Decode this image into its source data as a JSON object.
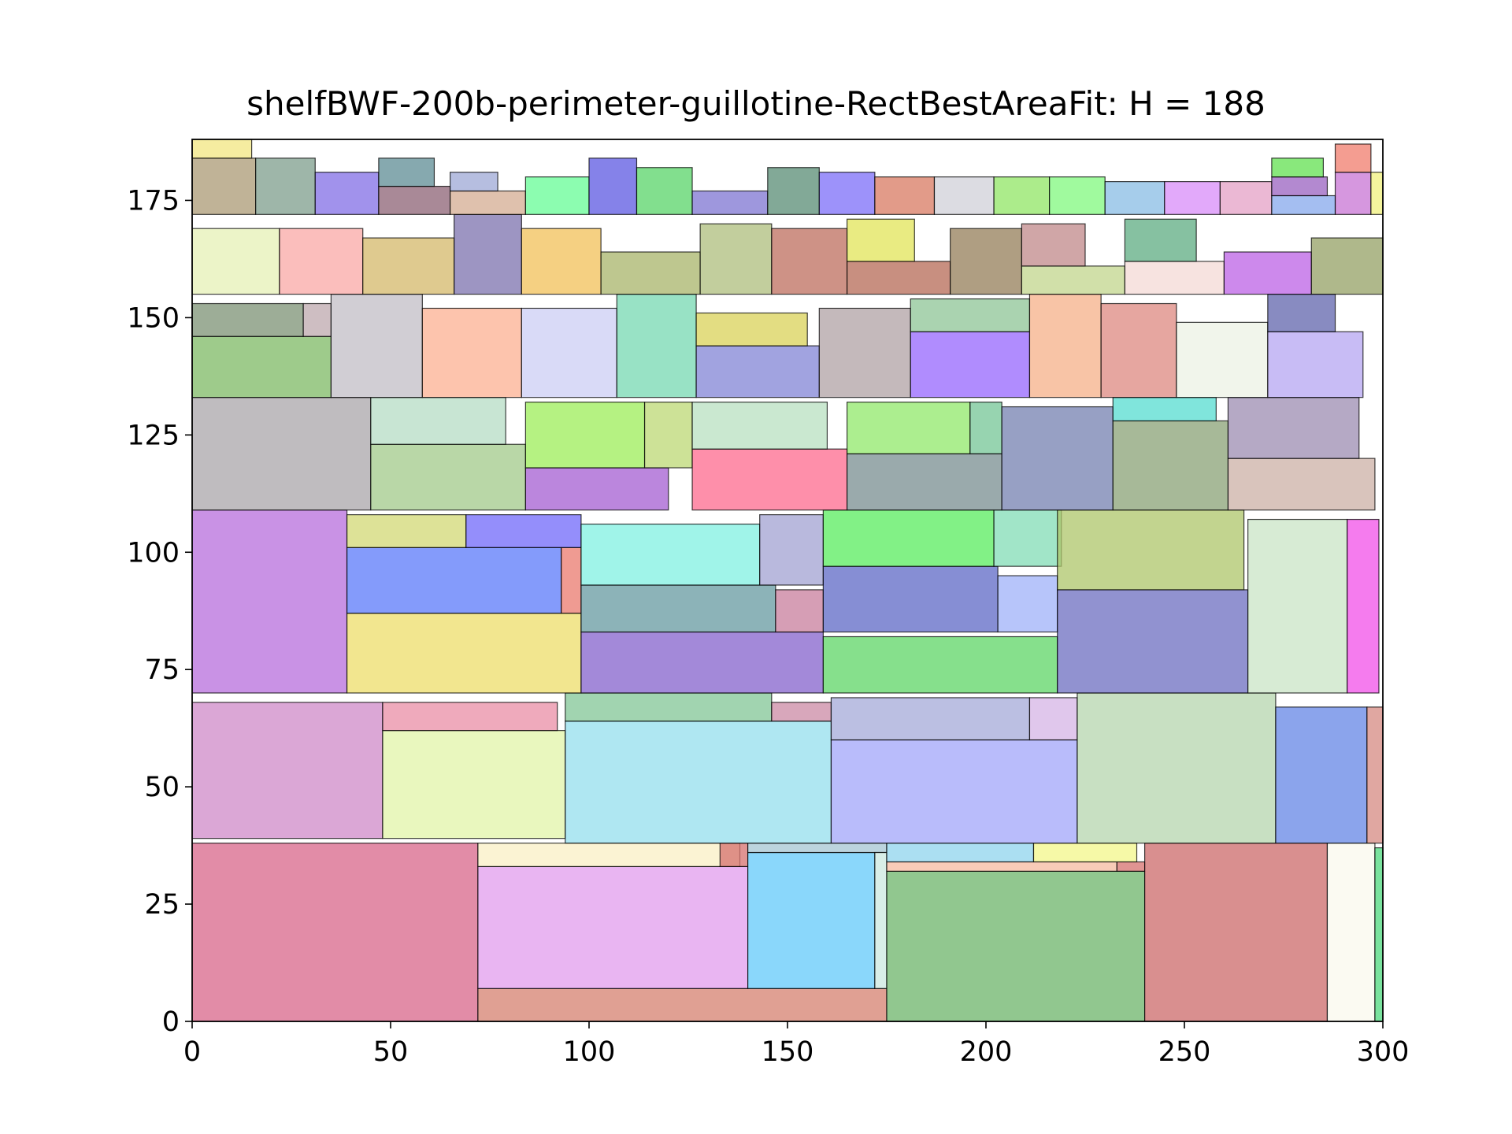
{
  "chart_data": {
    "type": "rectangle-packing",
    "title": "shelfBWF-200b-perimeter-guillotine-RectBestAreaFit: H = 188",
    "xlim": [
      0,
      300
    ],
    "ylim": [
      0,
      188
    ],
    "xticks": [
      0,
      50,
      100,
      150,
      200,
      250,
      300
    ],
    "yticks": [
      0,
      25,
      50,
      75,
      100,
      125,
      150,
      175
    ],
    "grid": false,
    "legend": "none",
    "rects": [
      {
        "x": 0,
        "y": 0,
        "w": 72,
        "h": 38,
        "color": "#d8658a"
      },
      {
        "x": 72,
        "y": 0,
        "w": 103,
        "h": 7,
        "color": "#d6806f"
      },
      {
        "x": 72,
        "y": 7,
        "w": 68,
        "h": 26,
        "color": "#e19cee"
      },
      {
        "x": 72,
        "y": 33,
        "w": 66,
        "h": 5,
        "color": "#faefc4"
      },
      {
        "x": 133,
        "y": 33,
        "w": 7,
        "h": 5,
        "color": "#d6706e"
      },
      {
        "x": 140,
        "y": 7,
        "w": 32,
        "h": 29,
        "color": "#63cafa"
      },
      {
        "x": 140,
        "y": 36,
        "w": 35,
        "h": 2,
        "color": "#a6c6d3"
      },
      {
        "x": 172,
        "y": 7,
        "w": 3,
        "h": 29,
        "color": "#cce8e0"
      },
      {
        "x": 175,
        "y": 0,
        "w": 65,
        "h": 32,
        "color": "#6cb46a"
      },
      {
        "x": 175,
        "y": 32,
        "w": 58,
        "h": 2,
        "color": "#f6b9a0"
      },
      {
        "x": 233,
        "y": 32,
        "w": 7,
        "h": 2,
        "color": "#d6706e"
      },
      {
        "x": 175,
        "y": 34,
        "w": 37,
        "h": 4,
        "color": "#8fd4ee"
      },
      {
        "x": 212,
        "y": 34,
        "w": 26,
        "h": 4,
        "color": "#f3f78a"
      },
      {
        "x": 240,
        "y": 0,
        "w": 46,
        "h": 38,
        "color": "#cc6a6a"
      },
      {
        "x": 286,
        "y": 0,
        "w": 12,
        "h": 38,
        "color": "#f9f8ee"
      },
      {
        "x": 298,
        "y": 0,
        "w": 2,
        "h": 37,
        "color": "#4ed87e"
      },
      {
        "x": 0,
        "y": 39,
        "w": 48,
        "h": 29,
        "color": "#cf8ac8"
      },
      {
        "x": 48,
        "y": 39,
        "w": 46,
        "h": 23,
        "color": "#e2f4a8"
      },
      {
        "x": 48,
        "y": 62,
        "w": 44,
        "h": 6,
        "color": "#ea8ea6"
      },
      {
        "x": 94,
        "y": 38,
        "w": 67,
        "h": 26,
        "color": "#94dfee"
      },
      {
        "x": 94,
        "y": 64,
        "w": 52,
        "h": 6,
        "color": "#82c696"
      },
      {
        "x": 146,
        "y": 64,
        "w": 15,
        "h": 4,
        "color": "#cb8aa4"
      },
      {
        "x": 161,
        "y": 38,
        "w": 62,
        "h": 22,
        "color": "#a2a6fa"
      },
      {
        "x": 161,
        "y": 60,
        "w": 50,
        "h": 9,
        "color": "#a4aad8"
      },
      {
        "x": 211,
        "y": 60,
        "w": 12,
        "h": 9,
        "color": "#d6b4e6"
      },
      {
        "x": 223,
        "y": 38,
        "w": 50,
        "h": 32,
        "color": "#b6d6ae"
      },
      {
        "x": 273,
        "y": 38,
        "w": 23,
        "h": 29,
        "color": "#6486e6"
      },
      {
        "x": 296,
        "y": 38,
        "w": 4,
        "h": 29,
        "color": "#d68a82"
      },
      {
        "x": 0,
        "y": 70,
        "w": 39,
        "h": 39,
        "color": "#b76ddc"
      },
      {
        "x": 39,
        "y": 70,
        "w": 59,
        "h": 17,
        "color": "#eede6a"
      },
      {
        "x": 39,
        "y": 87,
        "w": 54,
        "h": 14,
        "color": "#5b7afa"
      },
      {
        "x": 93,
        "y": 87,
        "w": 5,
        "h": 14,
        "color": "#ea7a6e"
      },
      {
        "x": 39,
        "y": 101,
        "w": 30,
        "h": 7,
        "color": "#d2d874"
      },
      {
        "x": 69,
        "y": 101,
        "w": 29,
        "h": 7,
        "color": "#7068fa"
      },
      {
        "x": 98,
        "y": 70,
        "w": 61,
        "h": 13,
        "color": "#8462cc"
      },
      {
        "x": 98,
        "y": 83,
        "w": 49,
        "h": 10,
        "color": "#659aa0"
      },
      {
        "x": 147,
        "y": 83,
        "w": 12,
        "h": 9,
        "color": "#c87e9c"
      },
      {
        "x": 98,
        "y": 93,
        "w": 45,
        "h": 13,
        "color": "#80f0e2"
      },
      {
        "x": 143,
        "y": 93,
        "w": 16,
        "h": 15,
        "color": "#a2a2d2"
      },
      {
        "x": 159,
        "y": 70,
        "w": 59,
        "h": 12,
        "color": "#5dd666"
      },
      {
        "x": 159,
        "y": 83,
        "w": 44,
        "h": 14,
        "color": "#5e68c6"
      },
      {
        "x": 203,
        "y": 83,
        "w": 15,
        "h": 12,
        "color": "#9fb2f8"
      },
      {
        "x": 159,
        "y": 97,
        "w": 43,
        "h": 12,
        "color": "#58ec5e"
      },
      {
        "x": 202,
        "y": 97,
        "w": 17,
        "h": 12,
        "color": "#82dcb6"
      },
      {
        "x": 218,
        "y": 70,
        "w": 48,
        "h": 22,
        "color": "#6c6ec0"
      },
      {
        "x": 218,
        "y": 92,
        "w": 47,
        "h": 17,
        "color": "#aec66a"
      },
      {
        "x": 266,
        "y": 70,
        "w": 25,
        "h": 37,
        "color": "#cae4c6"
      },
      {
        "x": 291,
        "y": 70,
        "w": 8,
        "h": 37,
        "color": "#f250e8"
      },
      {
        "x": 0,
        "y": 109,
        "w": 45,
        "h": 24,
        "color": "#aaa6aa"
      },
      {
        "x": 45,
        "y": 109,
        "w": 39,
        "h": 14,
        "color": "#a2ca8a"
      },
      {
        "x": 45,
        "y": 123,
        "w": 34,
        "h": 10,
        "color": "#b6dcc4"
      },
      {
        "x": 84,
        "y": 109,
        "w": 36,
        "h": 9,
        "color": "#a45ed2"
      },
      {
        "x": 84,
        "y": 118,
        "w": 30,
        "h": 14,
        "color": "#9cee58"
      },
      {
        "x": 114,
        "y": 118,
        "w": 12,
        "h": 14,
        "color": "#bcd874"
      },
      {
        "x": 126,
        "y": 109,
        "w": 39,
        "h": 13,
        "color": "#fd6a8e"
      },
      {
        "x": 126,
        "y": 122,
        "w": 34,
        "h": 10,
        "color": "#b8e0c0"
      },
      {
        "x": 165,
        "y": 109,
        "w": 39,
        "h": 12,
        "color": "#788e90"
      },
      {
        "x": 165,
        "y": 121,
        "w": 31,
        "h": 11,
        "color": "#90e86a"
      },
      {
        "x": 196,
        "y": 121,
        "w": 8,
        "h": 11,
        "color": "#74c696"
      },
      {
        "x": 204,
        "y": 109,
        "w": 28,
        "h": 22,
        "color": "#7480b0"
      },
      {
        "x": 232,
        "y": 109,
        "w": 29,
        "h": 19,
        "color": "#8aa276"
      },
      {
        "x": 232,
        "y": 128,
        "w": 26,
        "h": 5,
        "color": "#56dcd0"
      },
      {
        "x": 261,
        "y": 109,
        "w": 37,
        "h": 11,
        "color": "#ccb0a6"
      },
      {
        "x": 261,
        "y": 120,
        "w": 33,
        "h": 13,
        "color": "#9c8cb2"
      },
      {
        "x": 0,
        "y": 133,
        "w": 35,
        "h": 13,
        "color": "#7db964"
      },
      {
        "x": 0,
        "y": 146,
        "w": 28,
        "h": 7,
        "color": "#7c9274"
      },
      {
        "x": 28,
        "y": 146,
        "w": 7,
        "h": 7,
        "color": "#bea8ae"
      },
      {
        "x": 35,
        "y": 133,
        "w": 23,
        "h": 22,
        "color": "#c2bec6"
      },
      {
        "x": 58,
        "y": 133,
        "w": 25,
        "h": 19,
        "color": "#fcb092"
      },
      {
        "x": 83,
        "y": 133,
        "w": 24,
        "h": 19,
        "color": "#cccdf4"
      },
      {
        "x": 107,
        "y": 133,
        "w": 20,
        "h": 22,
        "color": "#76d8b2"
      },
      {
        "x": 127,
        "y": 133,
        "w": 31,
        "h": 11,
        "color": "#8284d6"
      },
      {
        "x": 127,
        "y": 144,
        "w": 28,
        "h": 7,
        "color": "#dad258"
      },
      {
        "x": 158,
        "y": 133,
        "w": 23,
        "h": 19,
        "color": "#b0a2a4"
      },
      {
        "x": 181,
        "y": 133,
        "w": 30,
        "h": 14,
        "color": "#9666fd"
      },
      {
        "x": 181,
        "y": 147,
        "w": 30,
        "h": 7,
        "color": "#8dc496"
      },
      {
        "x": 211,
        "y": 133,
        "w": 18,
        "h": 22,
        "color": "#f6b088"
      },
      {
        "x": 229,
        "y": 133,
        "w": 19,
        "h": 20,
        "color": "#de8880"
      },
      {
        "x": 248,
        "y": 133,
        "w": 23,
        "h": 16,
        "color": "#ecf2e4"
      },
      {
        "x": 271,
        "y": 133,
        "w": 24,
        "h": 14,
        "color": "#b6a6f2"
      },
      {
        "x": 271,
        "y": 147,
        "w": 17,
        "h": 8,
        "color": "#6064ac"
      },
      {
        "x": 0,
        "y": 155,
        "w": 22,
        "h": 14,
        "color": "#e6f0b6"
      },
      {
        "x": 22,
        "y": 155,
        "w": 21,
        "h": 14,
        "color": "#faa8a6"
      },
      {
        "x": 43,
        "y": 155,
        "w": 23,
        "h": 12,
        "color": "#d4b86a"
      },
      {
        "x": 66,
        "y": 155,
        "w": 17,
        "h": 17,
        "color": "#7c72ae"
      },
      {
        "x": 83,
        "y": 155,
        "w": 20,
        "h": 14,
        "color": "#f2c058"
      },
      {
        "x": 103,
        "y": 155,
        "w": 25,
        "h": 9,
        "color": "#a8b46a"
      },
      {
        "x": 128,
        "y": 155,
        "w": 18,
        "h": 15,
        "color": "#aebe7c"
      },
      {
        "x": 146,
        "y": 155,
        "w": 19,
        "h": 14,
        "color": "#be6e5e"
      },
      {
        "x": 165,
        "y": 155,
        "w": 26,
        "h": 7,
        "color": "#b66a56"
      },
      {
        "x": 165,
        "y": 162,
        "w": 17,
        "h": 9,
        "color": "#e2e458"
      },
      {
        "x": 191,
        "y": 155,
        "w": 18,
        "h": 14,
        "color": "#947e58"
      },
      {
        "x": 209,
        "y": 155,
        "w": 26,
        "h": 6,
        "color": "#c2d68c"
      },
      {
        "x": 209,
        "y": 161,
        "w": 16,
        "h": 9,
        "color": "#c0888a"
      },
      {
        "x": 235,
        "y": 155,
        "w": 25,
        "h": 7,
        "color": "#f4dad6"
      },
      {
        "x": 235,
        "y": 162,
        "w": 18,
        "h": 9,
        "color": "#5eac82"
      },
      {
        "x": 260,
        "y": 155,
        "w": 22,
        "h": 9,
        "color": "#bc62e6"
      },
      {
        "x": 282,
        "y": 155,
        "w": 18,
        "h": 12,
        "color": "#94a064"
      },
      {
        "x": 0,
        "y": 172,
        "w": 16,
        "h": 12,
        "color": "#ab9a74"
      },
      {
        "x": 16,
        "y": 172,
        "w": 15,
        "h": 12,
        "color": "#7e9e8c"
      },
      {
        "x": 31,
        "y": 172,
        "w": 16,
        "h": 9,
        "color": "#816ee6"
      },
      {
        "x": 47,
        "y": 172,
        "w": 18,
        "h": 6,
        "color": "#8c6274"
      },
      {
        "x": 47,
        "y": 178,
        "w": 14,
        "h": 6,
        "color": "#5e8c94"
      },
      {
        "x": 65,
        "y": 172,
        "w": 19,
        "h": 5,
        "color": "#d4ac92"
      },
      {
        "x": 65,
        "y": 177,
        "w": 12,
        "h": 4,
        "color": "#9ea8d6"
      },
      {
        "x": 84,
        "y": 172,
        "w": 16,
        "h": 8,
        "color": "#66fc96"
      },
      {
        "x": 100,
        "y": 172,
        "w": 12,
        "h": 12,
        "color": "#5c58e2"
      },
      {
        "x": 112,
        "y": 172,
        "w": 14,
        "h": 10,
        "color": "#58d468"
      },
      {
        "x": 126,
        "y": 172,
        "w": 19,
        "h": 5,
        "color": "#7e74d2"
      },
      {
        "x": 145,
        "y": 172,
        "w": 13,
        "h": 10,
        "color": "#588c74"
      },
      {
        "x": 158,
        "y": 172,
        "w": 14,
        "h": 9,
        "color": "#7c6ef8"
      },
      {
        "x": 172,
        "y": 172,
        "w": 15,
        "h": 8,
        "color": "#d87a62"
      },
      {
        "x": 187,
        "y": 172,
        "w": 15,
        "h": 8,
        "color": "#d0d0d8"
      },
      {
        "x": 202,
        "y": 172,
        "w": 14,
        "h": 8,
        "color": "#90e664"
      },
      {
        "x": 216,
        "y": 172,
        "w": 14,
        "h": 8,
        "color": "#80f87e"
      },
      {
        "x": 230,
        "y": 172,
        "w": 15,
        "h": 7,
        "color": "#88bce4"
      },
      {
        "x": 245,
        "y": 172,
        "w": 14,
        "h": 7,
        "color": "#d88cf8"
      },
      {
        "x": 259,
        "y": 172,
        "w": 13,
        "h": 7,
        "color": "#e4a0c6"
      },
      {
        "x": 272,
        "y": 172,
        "w": 16,
        "h": 4,
        "color": "#86a8ec"
      },
      {
        "x": 272,
        "y": 176,
        "w": 14,
        "h": 4,
        "color": "#9a62c0"
      },
      {
        "x": 288,
        "y": 172,
        "w": 9,
        "h": 9,
        "color": "#c874d4"
      },
      {
        "x": 297,
        "y": 172,
        "w": 3,
        "h": 9,
        "color": "#f0f07c"
      },
      {
        "x": 0,
        "y": 184,
        "w": 15,
        "h": 4,
        "color": "#f2e680"
      },
      {
        "x": 272,
        "y": 180,
        "w": 13,
        "h": 4,
        "color": "#62e050"
      },
      {
        "x": 288,
        "y": 181,
        "w": 9,
        "h": 6,
        "color": "#f07c6c"
      }
    ]
  }
}
